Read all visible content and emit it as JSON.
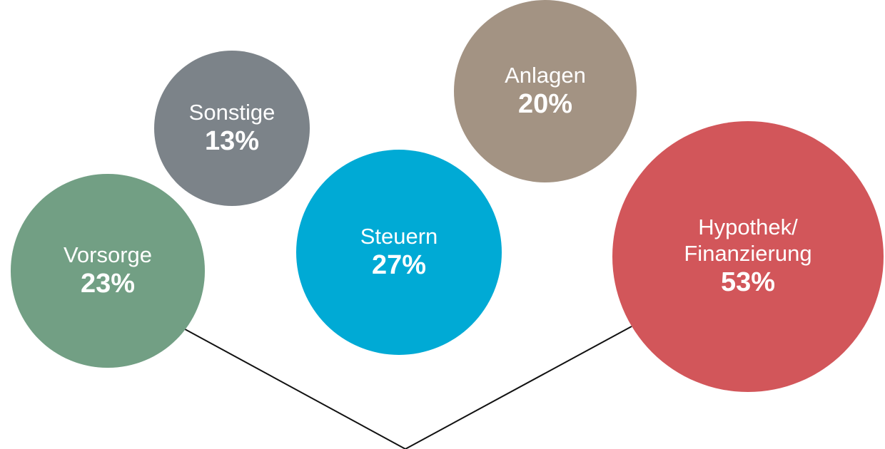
{
  "chart_data": {
    "type": "bubble",
    "categories": [
      "Vorsorge",
      "Sonstige",
      "Steuern",
      "Anlagen",
      "Hypothek/ Finanzierung"
    ],
    "values": [
      23,
      13,
      27,
      20,
      53
    ],
    "value_labels": [
      "23%",
      "13%",
      "27%",
      "20%",
      "53%"
    ],
    "colors": [
      "#729f84",
      "#7c8389",
      "#00aad5",
      "#a39383",
      "#d2565a"
    ]
  }
}
